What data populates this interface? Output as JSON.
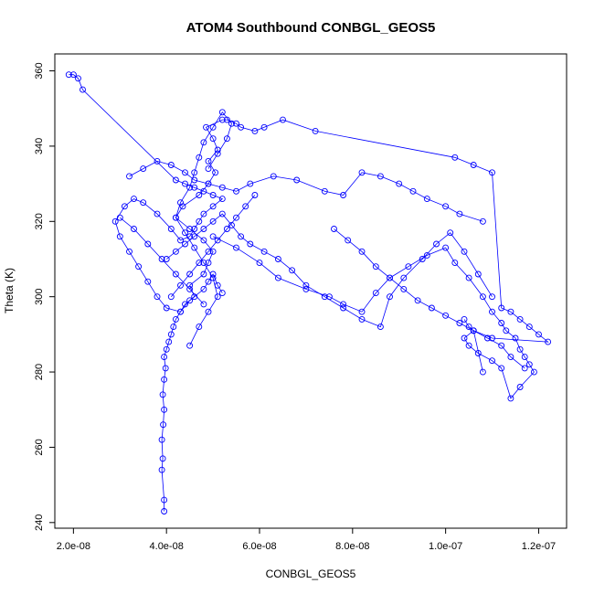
{
  "chart_data": {
    "type": "scatter",
    "title": "ATOM4 Southbound CONBGL_GEOS5",
    "xlabel": "CONBGL_GEOS5",
    "ylabel": "Theta (K)",
    "xlim": [
      1.6e-08,
      1.26e-07
    ],
    "ylim": [
      238.5,
      364.5
    ],
    "x_ticks": [
      2e-08,
      4e-08,
      6e-08,
      8e-08,
      1e-07,
      1.2e-07
    ],
    "x_tick_labels": [
      "2.0e-08",
      "4.0e-08",
      "6.0e-08",
      "8.0e-08",
      "1.0e-07",
      "1.2e-07"
    ],
    "y_ticks": [
      240,
      260,
      280,
      300,
      320,
      340,
      360
    ],
    "y_tick_labels": [
      "240",
      "260",
      "280",
      "300",
      "320",
      "340",
      "360"
    ],
    "grid": false,
    "legend": "none",
    "marker": "open-circle",
    "connected": true,
    "color": "#0000ff",
    "series": [
      {
        "x": [
          3.95e-08,
          3.95e-08,
          3.9e-08,
          3.92e-08,
          3.9e-08,
          3.93e-08,
          3.95e-08,
          3.92e-08,
          3.95e-08,
          3.98e-08,
          3.95e-08,
          4e-08,
          4.05e-08,
          4.1e-08,
          4.15e-08,
          4.2e-08,
          4.3e-08,
          4.4e-08,
          4.6e-08,
          4.5e-08,
          4.8e-08,
          4.9e-08,
          5e-08,
          4.8e-08,
          4.5e-08,
          4.2e-08,
          4.35e-08,
          4.7e-08,
          4.9e-08,
          5.05e-08,
          4.9e-08,
          5.1e-08,
          5e-08,
          4.85e-08,
          5.2e-08,
          5.3e-08,
          5.5e-08,
          5.6e-08,
          5.9e-08,
          6.1e-08,
          6.5e-08,
          7.2e-08,
          1.02e-07,
          1.06e-07,
          1.1e-07,
          1.12e-07,
          1.14e-07,
          1.16e-07,
          1.18e-07,
          1.2e-07,
          1.22e-07,
          1.1e-07,
          1.06e-07,
          1.05e-07,
          1.04e-07
        ],
        "y": [
          243,
          246,
          254,
          257,
          262,
          266,
          270,
          274,
          278,
          281,
          284,
          286,
          288,
          290,
          292,
          294,
          296,
          298,
          300,
          303,
          306,
          309,
          312,
          315,
          318,
          321,
          324,
          327,
          330,
          333,
          336,
          339,
          342,
          345,
          347,
          347,
          346,
          345,
          344,
          345,
          347,
          344,
          337,
          335,
          333,
          297,
          296,
          294,
          292,
          290,
          288,
          289,
          291,
          292,
          294
        ]
      },
      {
        "x": [
          1.9e-08,
          2e-08,
          2.1e-08,
          2.2e-08,
          4.2e-08,
          4.4e-08,
          4.6e-08,
          4.8e-08,
          5e-08,
          5.2e-08,
          5e-08,
          4.8e-08,
          4.7e-08,
          4.6e-08,
          4.5e-08,
          4.3e-08,
          4.1e-08,
          3.8e-08,
          3.5e-08,
          3.3e-08,
          3.1e-08,
          2.9e-08,
          3e-08,
          3.2e-08,
          3.4e-08,
          3.6e-08,
          3.8e-08,
          4e-08,
          4.3e-08,
          4.5e-08,
          4.8e-08,
          4.9e-08,
          5e-08,
          5.1e-08,
          5.2e-08
        ],
        "y": [
          359,
          359,
          358,
          355,
          331,
          330,
          329,
          328,
          327,
          326,
          324,
          322,
          320,
          318,
          316,
          315,
          318,
          322,
          325,
          326,
          324,
          320,
          316,
          312,
          308,
          304,
          300,
          297,
          296,
          299,
          302,
          304,
          306,
          303,
          301
        ]
      },
      {
        "x": [
          5e-08,
          5.5e-08,
          6e-08,
          6.4e-08,
          7e-08,
          7.5e-08,
          7.8e-08,
          8.2e-08,
          8.5e-08,
          8.8e-08,
          9.2e-08,
          9.6e-08,
          1e-07,
          1.02e-07,
          1.05e-07,
          1.08e-07,
          1.1e-07,
          1.12e-07,
          1.13e-07,
          1.15e-07,
          1.16e-07,
          1.17e-07,
          1.18e-07,
          1.19e-07,
          1.16e-07,
          1.14e-07,
          1.12e-07,
          1.1e-07,
          1.07e-07,
          1.05e-07,
          1.04e-07,
          1.06e-07,
          1.08e-07
        ],
        "y": [
          316,
          313,
          309,
          305,
          302,
          300,
          298,
          296,
          301,
          305,
          308,
          311,
          313,
          309,
          305,
          300,
          296,
          293,
          291,
          289,
          286,
          284,
          282,
          280,
          276,
          273,
          281,
          283,
          285,
          287,
          289,
          291,
          280
        ]
      },
      {
        "x": [
          3.2e-08,
          3.5e-08,
          3.8e-08,
          4.1e-08,
          4.4e-08,
          4.6e-08,
          4.9e-08,
          5.2e-08,
          5.5e-08,
          5.8e-08,
          6.3e-08,
          6.8e-08,
          7.4e-08,
          7.8e-08,
          8.2e-08,
          8.6e-08,
          9e-08,
          9.3e-08,
          9.6e-08,
          1e-07,
          1.03e-07,
          1.08e-07
        ],
        "y": [
          332,
          334,
          336,
          335,
          333,
          331,
          330,
          329,
          328,
          330,
          332,
          331,
          328,
          327,
          333,
          332,
          330,
          328,
          326,
          324,
          322,
          320
        ]
      },
      {
        "x": [
          4e-08,
          4.2e-08,
          4.4e-08,
          4.6e-08,
          4.8e-08,
          5e-08,
          5.2e-08,
          5.4e-08,
          5.6e-08,
          5.8e-08,
          6.1e-08,
          6.4e-08,
          6.7e-08,
          7e-08,
          7.4e-08,
          7.8e-08,
          8.2e-08,
          8.6e-08,
          8.8e-08,
          9.1e-08,
          9.5e-08,
          9.8e-08,
          1.01e-07,
          1.04e-07,
          1.07e-07,
          1.1e-07
        ],
        "y": [
          310,
          312,
          314,
          316,
          318,
          320,
          322,
          319,
          316,
          314,
          312,
          310,
          307,
          303,
          300,
          297,
          294,
          292,
          300,
          305,
          310,
          314,
          317,
          312,
          306,
          300
        ]
      },
      {
        "x": [
          4.5e-08,
          4.7e-08,
          4.9e-08,
          5.1e-08,
          5e-08,
          4.8e-08,
          4.6e-08,
          4.4e-08,
          4.2e-08,
          4.3e-08,
          4.5e-08,
          4.6e-08,
          4.7e-08,
          4.8e-08,
          5e-08,
          5.2e-08,
          5.4e-08,
          5.3e-08,
          5.1e-08,
          4.9e-08
        ],
        "y": [
          287,
          292,
          296,
          300,
          305,
          309,
          313,
          317,
          321,
          325,
          329,
          333,
          337,
          341,
          345,
          349,
          346,
          342,
          338,
          334
        ]
      },
      {
        "x": [
          7.6e-08,
          7.9e-08,
          8.2e-08,
          8.5e-08,
          8.8e-08,
          9.1e-08,
          9.4e-08,
          9.7e-08,
          1e-07,
          1.03e-07,
          1.06e-07,
          1.09e-07,
          1.12e-07,
          1.14e-07,
          1.17e-07
        ],
        "y": [
          318,
          315,
          312,
          308,
          305,
          302,
          299,
          297,
          295,
          293,
          291,
          289,
          287,
          284,
          281
        ]
      },
      {
        "x": [
          4.1e-08,
          4.3e-08,
          4.5e-08,
          4.7e-08,
          4.9e-08,
          5.1e-08,
          5.3e-08,
          5.5e-08,
          5.7e-08,
          5.9e-08
        ],
        "y": [
          300,
          303,
          306,
          309,
          312,
          315,
          318,
          321,
          324,
          327
        ]
      },
      {
        "x": [
          3e-08,
          3.3e-08,
          3.6e-08,
          3.9e-08,
          4.2e-08,
          4.5e-08,
          4.8e-08
        ],
        "y": [
          321,
          318,
          314,
          310,
          306,
          302,
          298
        ]
      }
    ]
  }
}
